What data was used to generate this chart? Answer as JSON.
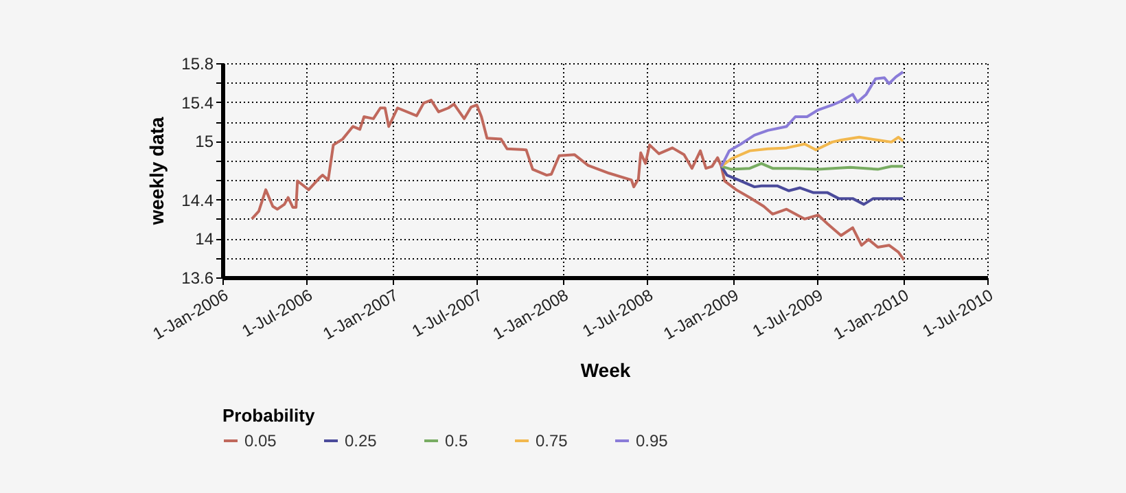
{
  "chart_data": {
    "type": "line",
    "xlabel": "Week",
    "ylabel": "weekly data",
    "legend_title": "Probability",
    "legend": "bottom",
    "grid": true,
    "line_style": "solid",
    "marker": "none",
    "xlim": [
      "2006-01-01",
      "2010-07-01"
    ],
    "xticks": [
      {
        "value": "2006-01-01",
        "label": "1-Jan-2006"
      },
      {
        "value": "2006-07-01",
        "label": "1-Jul-2006"
      },
      {
        "value": "2007-01-01",
        "label": "1-Jan-2007"
      },
      {
        "value": "2007-07-01",
        "label": "1-Jul-2007"
      },
      {
        "value": "2008-01-01",
        "label": "1-Jan-2008"
      },
      {
        "value": "2008-07-01",
        "label": "1-Jul-2008"
      },
      {
        "value": "2009-01-01",
        "label": "1-Jan-2009"
      },
      {
        "value": "2009-07-01",
        "label": "1-Jul-2009"
      },
      {
        "value": "2010-01-01",
        "label": "1-Jan-2010"
      },
      {
        "value": "2010-07-01",
        "label": "1-Jul-2010"
      }
    ],
    "ylim": [
      13.6,
      15.8
    ],
    "yticks": [
      13.6,
      {
        "value": 13.8,
        "label": null
      },
      14,
      {
        "value": 14.2,
        "label": null
      },
      14.4,
      {
        "value": 14.6,
        "label": null
      },
      {
        "value": 14.8,
        "label": null
      },
      15,
      {
        "value": 15.2,
        "label": null
      },
      15.4,
      {
        "value": 15.6,
        "label": null
      },
      15.8
    ],
    "series": [
      {
        "name": "0.05",
        "color": "#c0685c",
        "x": [
          "2006-03-05",
          "2006-03-20",
          "2006-04-04",
          "2006-04-19",
          "2006-04-29",
          "2006-05-14",
          "2006-05-22",
          "2006-06-01",
          "2006-06-08",
          "2006-06-11",
          "2006-06-22",
          "2006-07-05",
          "2006-07-30",
          "2006-08-04",
          "2006-08-16",
          "2006-08-27",
          "2006-09-16",
          "2006-10-08",
          "2006-10-23",
          "2006-11-01",
          "2006-11-21",
          "2006-12-06",
          "2006-12-16",
          "2006-12-24",
          "2007-01-01",
          "2007-01-12",
          "2007-02-22",
          "2007-03-09",
          "2007-03-25",
          "2007-04-10",
          "2007-05-01",
          "2007-05-13",
          "2007-06-04",
          "2007-06-19",
          "2007-07-01",
          "2007-07-11",
          "2007-07-23",
          "2007-08-22",
          "2007-09-04",
          "2007-10-15",
          "2007-10-29",
          "2007-11-28",
          "2007-12-08",
          "2007-12-25",
          "2008-01-27",
          "2008-02-25",
          "2008-04-10",
          "2008-05-28",
          "2008-06-02",
          "2008-06-12",
          "2008-06-17",
          "2008-06-27",
          "2008-07-06",
          "2008-07-26",
          "2008-08-24",
          "2008-09-18",
          "2008-10-05",
          "2008-10-23",
          "2008-11-04",
          "2008-11-17",
          "2008-11-29",
          "2008-12-07",
          "2008-12-14",
          "2009-01-08",
          "2009-02-06",
          "2009-03-08",
          "2009-03-27",
          "2009-04-26",
          "2009-06-04",
          "2009-07-03",
          "2009-07-23",
          "2009-08-21",
          "2009-09-15",
          "2009-10-04",
          "2009-10-19",
          "2009-11-08",
          "2009-12-02",
          "2009-12-22",
          "2010-01-03"
        ],
        "values": [
          14.2,
          14.28,
          14.5,
          14.33,
          14.3,
          14.35,
          14.42,
          14.32,
          14.32,
          14.59,
          14.55,
          14.5,
          14.63,
          14.65,
          14.6,
          14.96,
          15.02,
          15.15,
          15.12,
          15.25,
          15.23,
          15.34,
          15.34,
          15.15,
          15.23,
          15.34,
          15.26,
          15.39,
          15.42,
          15.3,
          15.34,
          15.38,
          15.23,
          15.35,
          15.37,
          15.25,
          15.03,
          15.02,
          14.92,
          14.91,
          14.71,
          14.65,
          14.66,
          14.85,
          14.86,
          14.75,
          14.67,
          14.6,
          14.53,
          14.61,
          14.88,
          14.77,
          14.96,
          14.87,
          14.93,
          14.86,
          14.72,
          14.9,
          14.72,
          14.74,
          14.83,
          14.74,
          14.59,
          14.5,
          14.42,
          14.33,
          14.25,
          14.3,
          14.2,
          14.24,
          14.15,
          14.03,
          14.11,
          13.93,
          13.99,
          13.91,
          13.93,
          13.86,
          13.78
        ]
      },
      {
        "name": "0.25",
        "color": "#4b4b9b",
        "x": [
          "2008-12-07",
          "2008-12-19",
          "2009-01-18",
          "2009-02-16",
          "2009-03-03",
          "2009-04-06",
          "2009-05-01",
          "2009-05-25",
          "2009-06-23",
          "2009-07-23",
          "2009-08-16",
          "2009-09-15",
          "2009-10-09",
          "2009-10-29",
          "2009-11-27",
          "2010-01-01"
        ],
        "values": [
          14.74,
          14.65,
          14.59,
          14.53,
          14.54,
          14.54,
          14.49,
          14.52,
          14.47,
          14.47,
          14.41,
          14.41,
          14.35,
          14.41,
          14.41,
          14.41
        ]
      },
      {
        "name": "0.5",
        "color": "#78ac62",
        "x": [
          "2008-12-07",
          "2008-12-29",
          "2009-02-06",
          "2009-03-03",
          "2009-03-27",
          "2009-05-15",
          "2009-07-03",
          "2009-09-10",
          "2009-11-08",
          "2009-12-07",
          "2010-01-01"
        ],
        "values": [
          14.74,
          14.71,
          14.72,
          14.77,
          14.72,
          14.72,
          14.71,
          14.73,
          14.71,
          14.74,
          14.74
        ]
      },
      {
        "name": "0.75",
        "color": "#f2b84e",
        "x": [
          "2008-12-07",
          "2008-12-29",
          "2009-02-06",
          "2009-03-17",
          "2009-04-26",
          "2009-06-04",
          "2009-06-28",
          "2009-08-02",
          "2009-08-21",
          "2009-09-29",
          "2009-11-08",
          "2009-12-07",
          "2009-12-22",
          "2010-01-01"
        ],
        "values": [
          14.74,
          14.82,
          14.9,
          14.92,
          14.93,
          14.97,
          14.91,
          14.99,
          15.01,
          15.04,
          15.01,
          14.99,
          15.04,
          15.0
        ]
      },
      {
        "name": "0.95",
        "color": "#8a7cd8",
        "x": [
          "2008-12-07",
          "2008-12-24",
          "2009-01-18",
          "2009-02-16",
          "2009-03-17",
          "2009-04-26",
          "2009-05-15",
          "2009-06-09",
          "2009-07-03",
          "2009-08-02",
          "2009-08-21",
          "2009-09-15",
          "2009-09-25",
          "2009-10-14",
          "2009-11-03",
          "2009-11-22",
          "2009-12-02",
          "2009-12-17",
          "2010-01-01"
        ],
        "values": [
          14.74,
          14.9,
          14.97,
          15.06,
          15.11,
          15.15,
          15.25,
          15.25,
          15.32,
          15.37,
          15.41,
          15.48,
          15.4,
          15.48,
          15.64,
          15.65,
          15.59,
          15.66,
          15.71
        ]
      }
    ]
  }
}
